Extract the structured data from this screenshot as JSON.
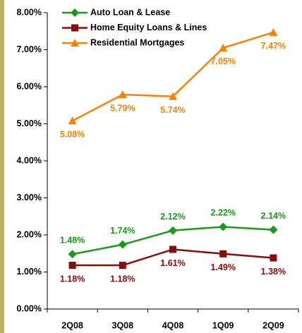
{
  "chart_data": {
    "type": "line",
    "categories": [
      "2Q08",
      "3Q08",
      "4Q08",
      "1Q09",
      "2Q09"
    ],
    "series": [
      {
        "name": "Auto Loan & Lease",
        "color": "#1a9a1a",
        "marker": "diamond",
        "label_position": "above",
        "values": [
          1.48,
          1.74,
          2.12,
          2.22,
          2.14
        ],
        "value_labels": [
          "1.48%",
          "1.74%",
          "2.12%",
          "2.22%",
          "2.14%"
        ]
      },
      {
        "name": "Home Equity Loans & Lines",
        "color": "#8b0a0a",
        "marker": "square",
        "label_position": "below",
        "values": [
          1.18,
          1.18,
          1.61,
          1.49,
          1.38
        ],
        "value_labels": [
          "1.18%",
          "1.18%",
          "1.61%",
          "1.49%",
          "1.38%"
        ]
      },
      {
        "name": "Residential Mortgages",
        "color": "#ff8000",
        "marker": "triangle",
        "label_position": "below",
        "values": [
          5.08,
          5.79,
          5.74,
          7.05,
          7.47
        ],
        "value_labels": [
          "5.08%",
          "5.79%",
          "5.74%",
          "7.05%",
          "7.47%"
        ]
      }
    ],
    "ylim": [
      0,
      8
    ],
    "yticks": [
      {
        "value": 0,
        "label": "0.00%"
      },
      {
        "value": 1,
        "label": "1.00%"
      },
      {
        "value": 2,
        "label": "2.00%"
      },
      {
        "value": 3,
        "label": "3.00%"
      },
      {
        "value": 4,
        "label": "4.00%"
      },
      {
        "value": 5,
        "label": "5.00%"
      },
      {
        "value": 6,
        "label": "6.00%"
      },
      {
        "value": 7,
        "label": "7.00%"
      },
      {
        "value": 8,
        "label": "8.00%"
      }
    ],
    "grid": false,
    "legend": "top-left"
  }
}
